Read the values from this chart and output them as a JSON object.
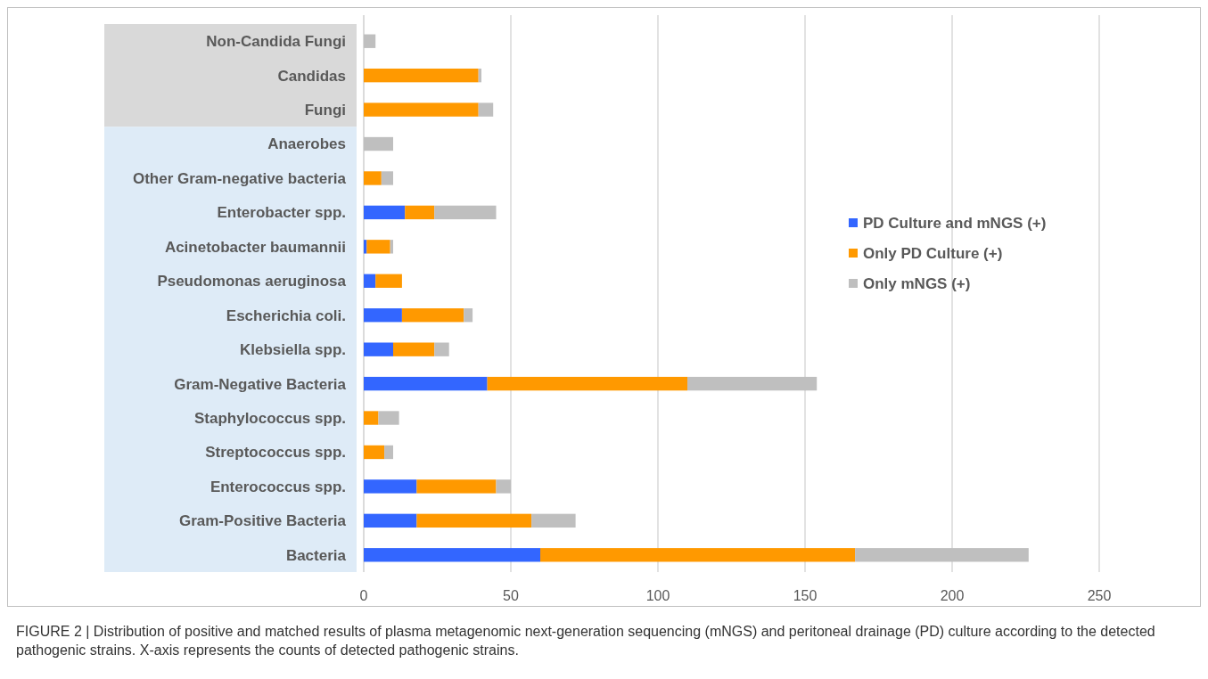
{
  "chart_data": {
    "type": "bar",
    "orientation": "horizontal",
    "stacked": true,
    "categories": [
      "Non-Candida Fungi",
      "Candidas",
      "Fungi",
      "Anaerobes",
      "Other Gram-negative bacteria",
      "Enterobacter spp.",
      "Acinetobacter baumannii",
      "Pseudomonas aeruginosa",
      "Escherichia coli.",
      "Klebsiella spp.",
      "Gram-Negative Bacteria",
      "Staphylococcus spp.",
      "Streptococcus spp.",
      "Enterococcus spp.",
      "Gram-Positive Bacteria",
      "Bacteria"
    ],
    "series": [
      {
        "name": "PD Culture and mNGS (+)",
        "color": "#3366ff",
        "values": [
          0,
          0,
          0,
          0,
          0,
          14,
          1,
          4,
          13,
          10,
          42,
          0,
          0,
          18,
          18,
          60
        ]
      },
      {
        "name": "Only PD Culture (+)",
        "color": "#ff9900",
        "values": [
          0,
          39,
          39,
          0,
          6,
          10,
          8,
          9,
          21,
          14,
          68,
          5,
          7,
          27,
          39,
          107
        ]
      },
      {
        "name": "Only mNGS (+)",
        "color": "#bfbfbf",
        "values": [
          4,
          1,
          5,
          10,
          4,
          21,
          1,
          0,
          3,
          5,
          44,
          7,
          3,
          5,
          15,
          59
        ]
      }
    ],
    "xlim": [
      0,
      250
    ],
    "xticks": [
      0,
      50,
      100,
      150,
      200,
      250
    ],
    "grid": "x",
    "legend": "right",
    "annotations": [
      "FIGURE 2 | Distribution of positive and matched results of plasma metagenomic next-generation sequencing (mNGS) and peritoneal drainage (PD) culture according to the detected pathogenic strains. X-axis represents the counts of detected pathogenic strains."
    ]
  }
}
